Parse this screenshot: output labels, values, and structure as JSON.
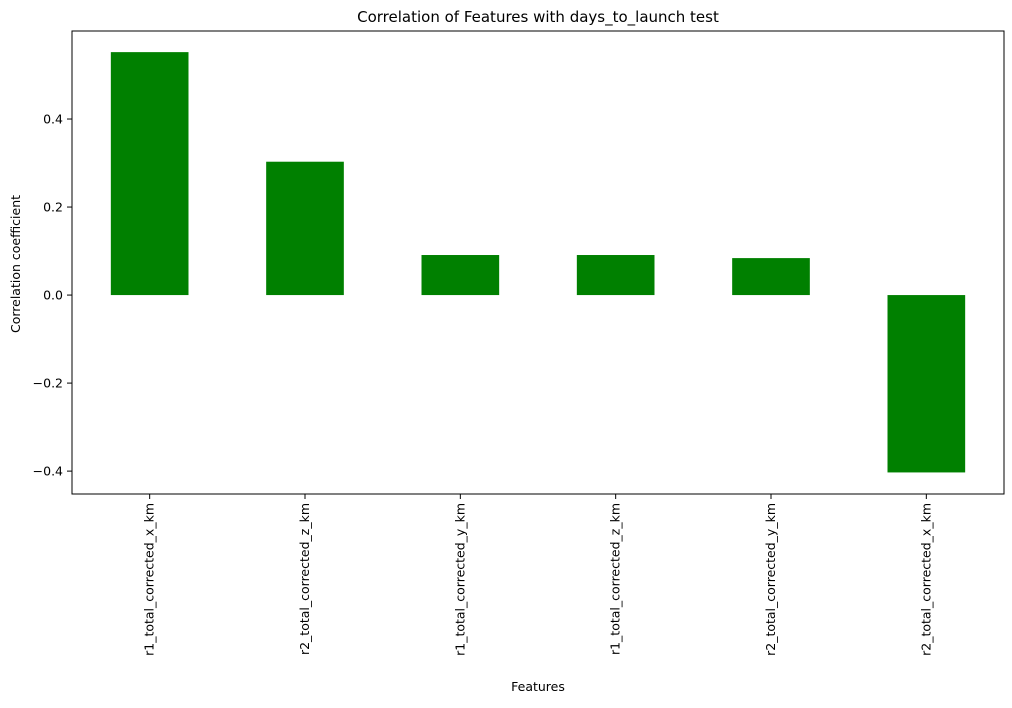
{
  "chart_data": {
    "type": "bar",
    "title": "Correlation of Features with days_to_launch test",
    "xlabel": "Features",
    "ylabel": "Correlation coefficient",
    "categories": [
      "r1_total_corrected_x_km",
      "r2_total_corrected_z_km",
      "r1_total_corrected_y_km",
      "r1_total_corrected_z_km",
      "r2_total_corrected_y_km",
      "r2_total_corrected_x_km"
    ],
    "values": [
      0.552,
      0.303,
      0.091,
      0.091,
      0.084,
      -0.403
    ],
    "ylim": [
      -0.452,
      0.6
    ],
    "yticks": [
      -0.4,
      -0.2,
      0.0,
      0.2,
      0.4
    ],
    "ytick_labels": [
      "−0.4",
      "−0.2",
      "0.0",
      "0.2",
      "0.4"
    ],
    "bar_color": "#008000",
    "grid": false,
    "legend": "none"
  }
}
